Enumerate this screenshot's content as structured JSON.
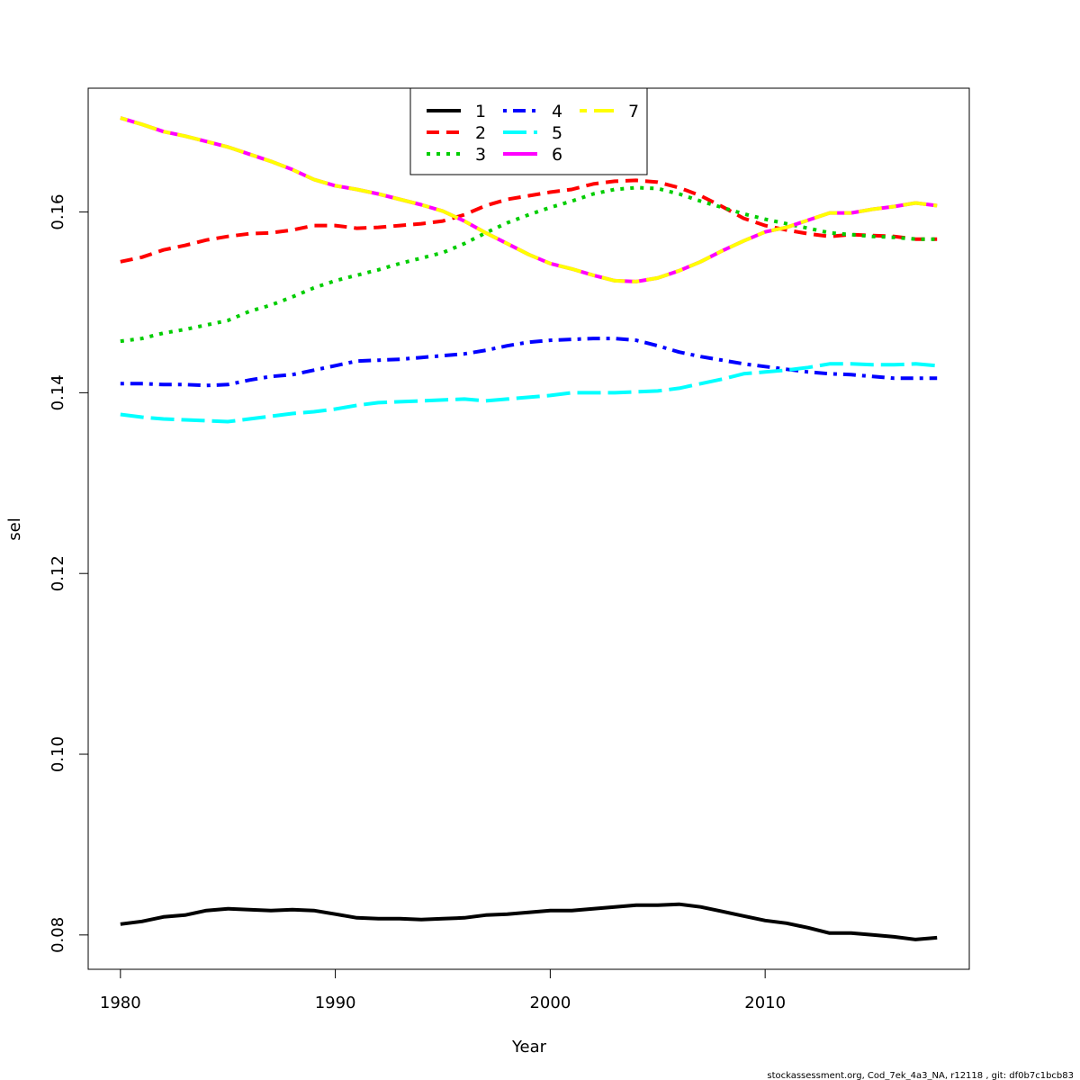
{
  "chart_data": {
    "type": "line",
    "xlabel": "Year",
    "ylabel": "sel",
    "xlim": [
      1978.5,
      2019.5
    ],
    "ylim": [
      0.0762,
      0.1737
    ],
    "x_ticks": [
      1980,
      1990,
      2000,
      2010
    ],
    "x_tick_labels": [
      "1980",
      "1990",
      "2000",
      "2010"
    ],
    "y_ticks": [
      0.08,
      0.1,
      0.12,
      0.14,
      0.16
    ],
    "y_tick_labels": [
      "0.08",
      "0.10",
      "0.12",
      "0.14",
      "0.16"
    ],
    "legend_position": "top-center",
    "footer": "stockassessment.org, Cod_7ek_4a3_NA, r12118 , git: df0b7c1bcb83",
    "x": [
      1980,
      1981,
      1982,
      1983,
      1984,
      1985,
      1986,
      1987,
      1988,
      1989,
      1990,
      1991,
      1992,
      1993,
      1994,
      1995,
      1996,
      1997,
      1998,
      1999,
      2000,
      2001,
      2002,
      2003,
      2004,
      2005,
      2006,
      2007,
      2008,
      2009,
      2010,
      2011,
      2012,
      2013,
      2014,
      2015,
      2016,
      2017,
      2018
    ],
    "series": [
      {
        "name": "1",
        "color": "#000000",
        "dash": "solid",
        "values": [
          0.0812,
          0.0815,
          0.082,
          0.0822,
          0.0827,
          0.0829,
          0.0828,
          0.0827,
          0.0828,
          0.0827,
          0.0823,
          0.0819,
          0.0818,
          0.0818,
          0.0817,
          0.0818,
          0.0819,
          0.0822,
          0.0823,
          0.0825,
          0.0827,
          0.0827,
          0.0829,
          0.0831,
          0.0833,
          0.0833,
          0.0834,
          0.0831,
          0.0826,
          0.0821,
          0.0816,
          0.0813,
          0.0808,
          0.0802,
          0.0802,
          0.08,
          0.0798,
          0.0795,
          0.0797
        ]
      },
      {
        "name": "2",
        "color": "#ff0000",
        "dash": "dashed",
        "values": [
          0.1545,
          0.155,
          0.1558,
          0.1563,
          0.1569,
          0.1573,
          0.1576,
          0.1577,
          0.158,
          0.1585,
          0.1585,
          0.1582,
          0.1583,
          0.1585,
          0.1587,
          0.159,
          0.1597,
          0.1607,
          0.1614,
          0.1618,
          0.1622,
          0.1625,
          0.1631,
          0.1634,
          0.1635,
          0.1633,
          0.1627,
          0.1618,
          0.1606,
          0.1593,
          0.1585,
          0.158,
          0.1576,
          0.1573,
          0.1575,
          0.1574,
          0.1573,
          0.157,
          0.157
        ]
      },
      {
        "name": "3",
        "color": "#00cd00",
        "dash": "dotted",
        "values": [
          0.1457,
          0.146,
          0.1466,
          0.147,
          0.1475,
          0.148,
          0.149,
          0.1497,
          0.1506,
          0.1516,
          0.1524,
          0.153,
          0.1536,
          0.1543,
          0.1549,
          0.1555,
          0.1565,
          0.1577,
          0.1588,
          0.1597,
          0.1605,
          0.1612,
          0.162,
          0.1625,
          0.1627,
          0.1626,
          0.162,
          0.1612,
          0.1605,
          0.1598,
          0.1592,
          0.1587,
          0.1582,
          0.1577,
          0.1575,
          0.1573,
          0.1572,
          0.157,
          0.157
        ]
      },
      {
        "name": "4",
        "color": "#0000ff",
        "dash": "dotdash",
        "values": [
          0.141,
          0.141,
          0.1409,
          0.1409,
          0.1408,
          0.1409,
          0.1414,
          0.1418,
          0.142,
          0.1425,
          0.143,
          0.1435,
          0.1436,
          0.1437,
          0.1439,
          0.1441,
          0.1443,
          0.1447,
          0.1452,
          0.1456,
          0.1458,
          0.1459,
          0.146,
          0.146,
          0.1458,
          0.1452,
          0.1445,
          0.144,
          0.1436,
          0.1432,
          0.1429,
          0.1426,
          0.1423,
          0.1421,
          0.142,
          0.1418,
          0.1416,
          0.1416,
          0.1416
        ]
      },
      {
        "name": "5",
        "color": "#00ffff",
        "dash": "longdash",
        "values": [
          0.1376,
          0.1373,
          0.1371,
          0.137,
          0.1369,
          0.1368,
          0.1371,
          0.1374,
          0.1377,
          0.1379,
          0.1382,
          0.1386,
          0.1389,
          0.139,
          0.1391,
          0.1392,
          0.1393,
          0.1391,
          0.1393,
          0.1395,
          0.1397,
          0.14,
          0.14,
          0.14,
          0.1401,
          0.1402,
          0.1405,
          0.141,
          0.1415,
          0.1421,
          0.1423,
          0.1425,
          0.1428,
          0.1432,
          0.1432,
          0.1431,
          0.1431,
          0.1432,
          0.143
        ]
      },
      {
        "name": "6",
        "color": "#ff00ff",
        "dash": "solid",
        "values": [
          0.1704,
          0.1697,
          0.1689,
          0.1684,
          0.1678,
          0.1672,
          0.1664,
          0.1656,
          0.1647,
          0.1636,
          0.1629,
          0.1625,
          0.162,
          0.1614,
          0.1608,
          0.1601,
          0.159,
          0.1577,
          0.1565,
          0.1553,
          0.1543,
          0.1537,
          0.153,
          0.1524,
          0.1523,
          0.1527,
          0.1535,
          0.1545,
          0.1557,
          0.1568,
          0.1578,
          0.1583,
          0.1591,
          0.1599,
          0.1599,
          0.1603,
          0.1606,
          0.161,
          0.1607
        ]
      },
      {
        "name": "7",
        "color": "#ffff00",
        "dash": "twodash",
        "values": [
          0.1704,
          0.1697,
          0.1689,
          0.1684,
          0.1678,
          0.1672,
          0.1664,
          0.1656,
          0.1647,
          0.1636,
          0.1629,
          0.1625,
          0.162,
          0.1614,
          0.1608,
          0.1601,
          0.159,
          0.1577,
          0.1565,
          0.1553,
          0.1543,
          0.1537,
          0.153,
          0.1524,
          0.1523,
          0.1527,
          0.1535,
          0.1545,
          0.1557,
          0.1568,
          0.1578,
          0.1583,
          0.1591,
          0.1599,
          0.1599,
          0.1603,
          0.1606,
          0.161,
          0.1607
        ]
      }
    ]
  }
}
